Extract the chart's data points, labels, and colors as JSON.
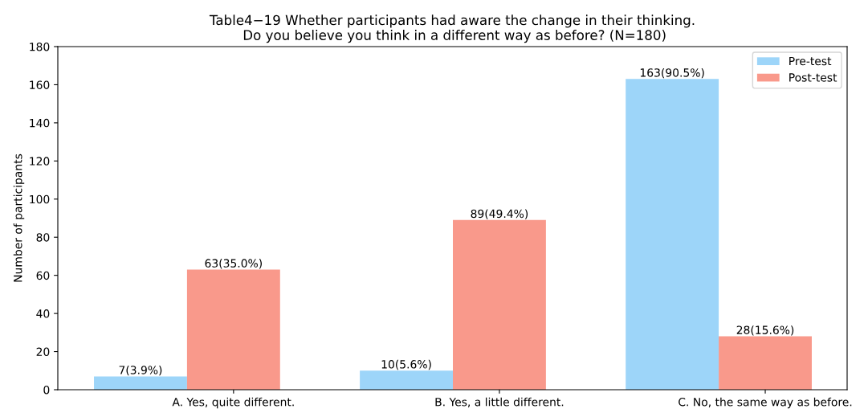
{
  "chart_data": {
    "type": "bar",
    "title": "Table4−19 Whether participants had aware the change in their thinking.\n Do you believe you think in a different way as before? (N=180)",
    "ylabel": "Number of participants",
    "categories": [
      "A. Yes, quite different.",
      "B. Yes, a little different.",
      "C. No, the same way as before."
    ],
    "series": [
      {
        "name": "Pre-test",
        "color": "#9dd5f9",
        "values": [
          7,
          10,
          163
        ],
        "value_labels": [
          "7(3.9%)",
          "10(5.6%)",
          "163(90.5%)"
        ]
      },
      {
        "name": "Post-test",
        "color": "#f9998b",
        "values": [
          63,
          89,
          28
        ],
        "value_labels": [
          "63(35.0%)",
          "89(49.4%)",
          "28(15.6%)"
        ]
      }
    ],
    "ylim": [
      0,
      180
    ],
    "yticks": [
      0,
      20,
      40,
      60,
      80,
      100,
      120,
      140,
      160,
      180
    ],
    "grid": false,
    "legend": "top right"
  }
}
